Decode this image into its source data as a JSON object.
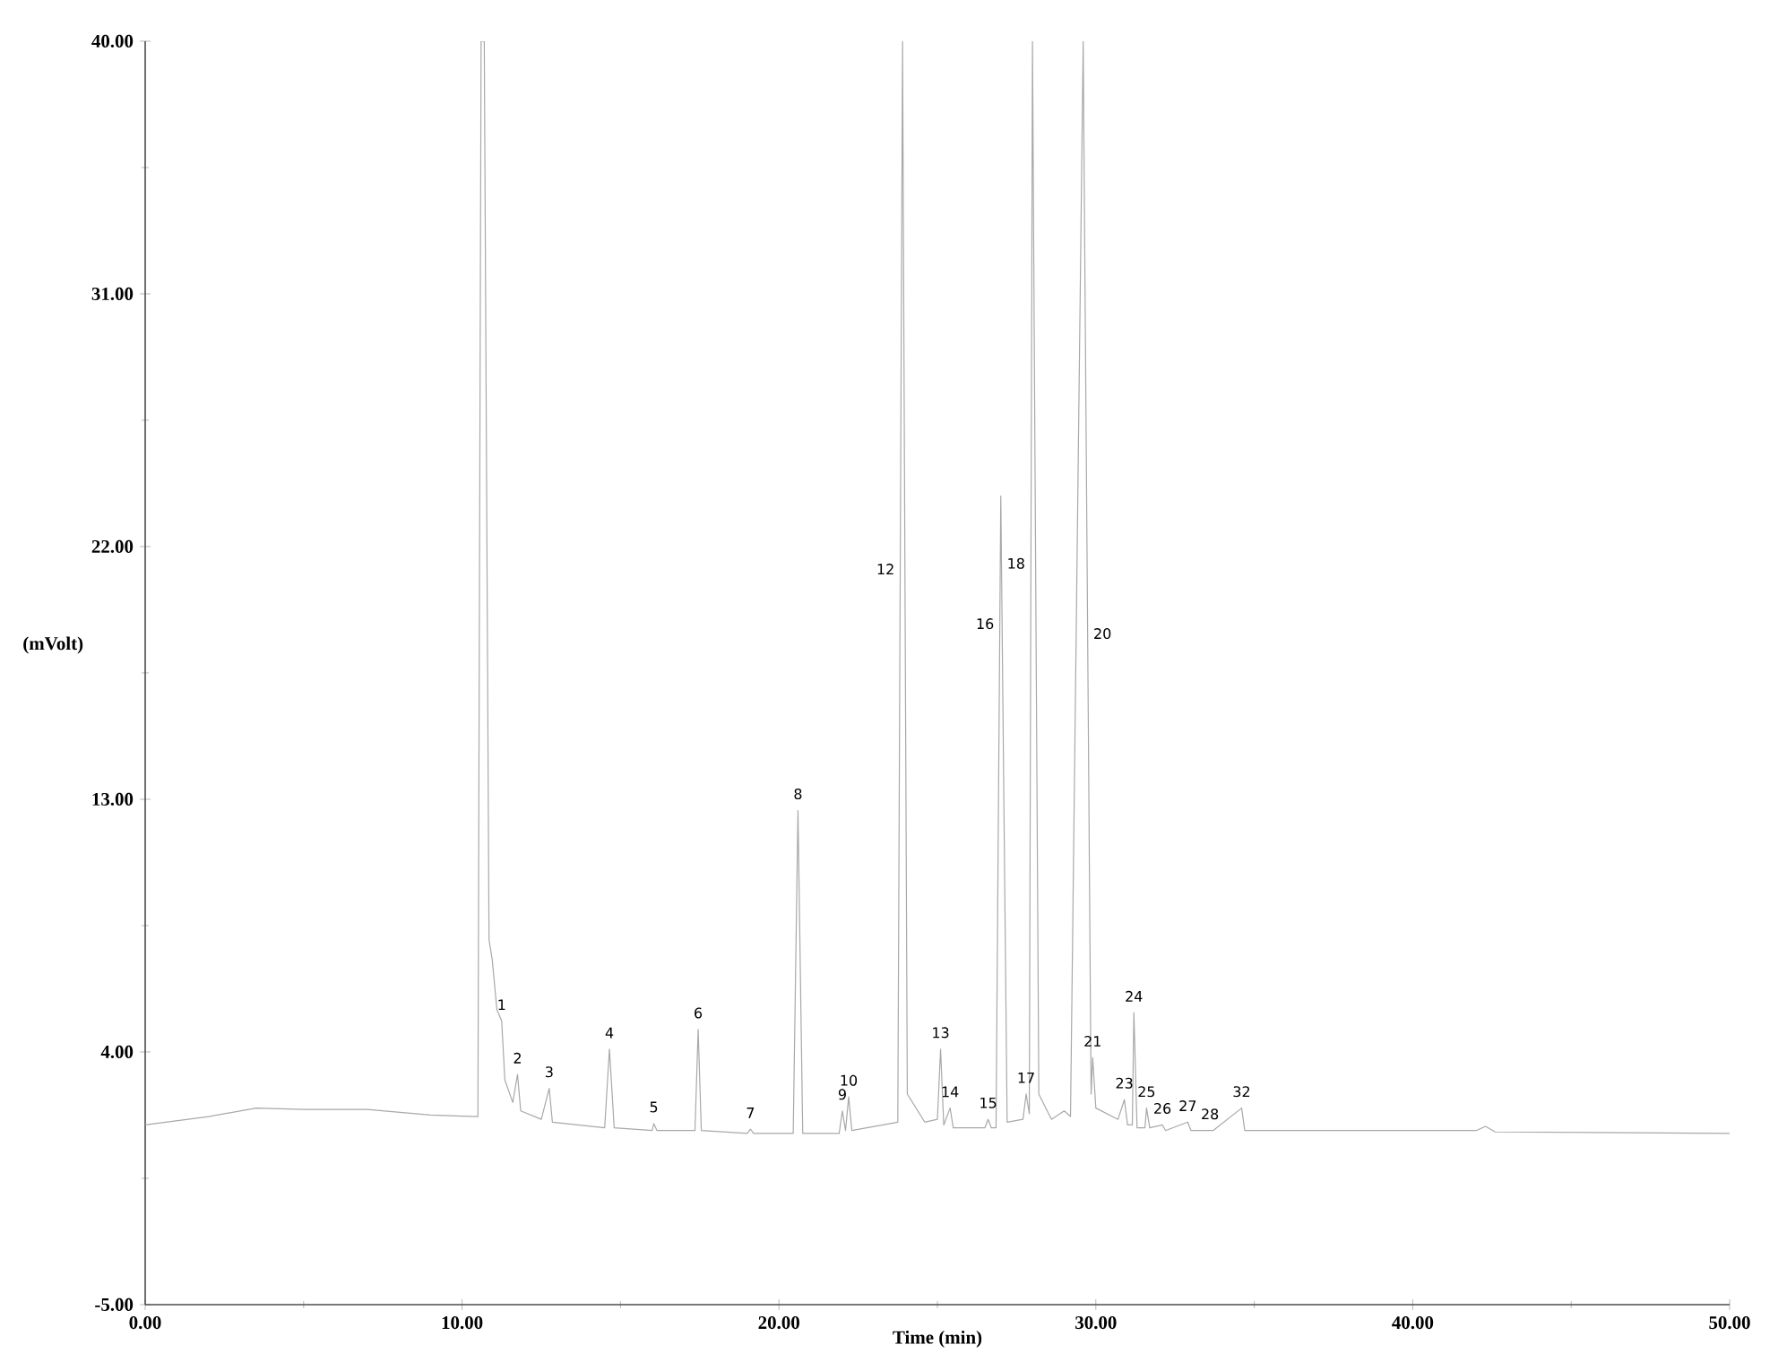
{
  "chart_data": {
    "type": "line",
    "xlabel": "Time (min)",
    "ylabel": "(mVolt)",
    "xlim": [
      0,
      50
    ],
    "ylim": [
      -5,
      40
    ],
    "xticks": [
      {
        "value": 0,
        "label": "0.00"
      },
      {
        "value": 10,
        "label": "10.00"
      },
      {
        "value": 20,
        "label": "20.00"
      },
      {
        "value": 30,
        "label": "30.00"
      },
      {
        "value": 40,
        "label": "40.00"
      },
      {
        "value": 50,
        "label": "50.00"
      }
    ],
    "yticks": [
      {
        "value": -5,
        "label": "-5.00"
      },
      {
        "value": 4,
        "label": "4.00"
      },
      {
        "value": 13,
        "label": "13.00"
      },
      {
        "value": 22,
        "label": "22.00"
      },
      {
        "value": 31,
        "label": "31.00"
      },
      {
        "value": 40,
        "label": "40.00"
      }
    ],
    "series": [
      {
        "color": "#a8a8a8",
        "x": [
          0,
          2,
          3.5,
          5,
          7,
          9,
          10.5,
          10.6,
          10.7,
          10.85,
          10.95,
          11.1,
          11.25,
          11.35,
          11.6,
          11.75,
          11.85,
          12.5,
          12.75,
          12.85,
          14.5,
          14.65,
          14.8,
          16.0,
          16.05,
          16.15,
          17.35,
          17.45,
          17.55,
          19.0,
          19.1,
          19.2,
          20.45,
          20.6,
          20.75,
          21.9,
          22.0,
          22.1,
          22.2,
          22.3,
          23.75,
          23.9,
          24.05,
          24.6,
          25.0,
          25.1,
          25.2,
          25.4,
          25.5,
          26.5,
          26.6,
          26.7,
          26.85,
          27.0,
          27.2,
          27.7,
          27.8,
          27.9,
          28.0,
          28.2,
          28.6,
          29.0,
          29.2,
          29.6,
          29.85,
          29.9,
          30.0,
          30.7,
          30.9,
          31.0,
          31.15,
          31.2,
          31.3,
          31.55,
          31.6,
          31.7,
          32.1,
          32.2,
          32.9,
          33.0,
          33.6,
          33.7,
          34.6,
          34.7,
          42,
          42.3,
          42.6,
          50
        ],
        "values": [
          1.4,
          1.7,
          2.0,
          1.95,
          1.95,
          1.75,
          1.7,
          40,
          40,
          8,
          7.3,
          5.5,
          5.1,
          3.0,
          2.2,
          3.2,
          1.9,
          1.6,
          2.7,
          1.5,
          1.3,
          4.1,
          1.3,
          1.2,
          1.45,
          1.2,
          1.2,
          4.8,
          1.2,
          1.1,
          1.25,
          1.1,
          1.1,
          12.6,
          1.1,
          1.1,
          1.9,
          1.2,
          2.4,
          1.2,
          1.5,
          40,
          2.5,
          1.5,
          1.6,
          4.1,
          1.4,
          2.0,
          1.3,
          1.3,
          1.6,
          1.3,
          1.3,
          23.8,
          1.5,
          1.6,
          2.5,
          1.8,
          40,
          2.5,
          1.6,
          1.9,
          1.7,
          40,
          2.5,
          3.8,
          2.0,
          1.6,
          2.3,
          1.4,
          1.4,
          5.4,
          1.3,
          1.3,
          2.0,
          1.3,
          1.4,
          1.2,
          1.5,
          1.2,
          1.2,
          1.2,
          2.0,
          1.2,
          1.2,
          1.35,
          1.15,
          1.1
        ]
      }
    ],
    "annotations": [
      {
        "text": "1",
        "x": 11.25,
        "y": 5.1
      },
      {
        "text": "2",
        "x": 11.75,
        "y": 3.2
      },
      {
        "text": "3",
        "x": 12.75,
        "y": 2.7
      },
      {
        "text": "4",
        "x": 14.65,
        "y": 4.1
      },
      {
        "text": "5",
        "x": 16.05,
        "y": 1.45
      },
      {
        "text": "6",
        "x": 17.45,
        "y": 4.8
      },
      {
        "text": "7",
        "x": 19.1,
        "y": 1.25
      },
      {
        "text": "8",
        "x": 20.6,
        "y": 12.6
      },
      {
        "text": "9",
        "x": 22.0,
        "y": 1.9
      },
      {
        "text": "10",
        "x": 22.2,
        "y": 2.4
      },
      {
        "text": "12",
        "x": 23.83,
        "y": 21.2
      },
      {
        "text": "13",
        "x": 25.1,
        "y": 4.1
      },
      {
        "text": "14",
        "x": 25.4,
        "y": 2.0
      },
      {
        "text": "15",
        "x": 26.6,
        "y": 1.6
      },
      {
        "text": "16",
        "x": 26.97,
        "y": 19.25
      },
      {
        "text": "17",
        "x": 27.8,
        "y": 2.5
      },
      {
        "text": "18",
        "x": 27.95,
        "y": 21.4
      },
      {
        "text": "20",
        "x": 29.74,
        "y": 18.9
      },
      {
        "text": "21",
        "x": 29.9,
        "y": 3.8
      },
      {
        "text": "23",
        "x": 30.9,
        "y": 2.3
      },
      {
        "text": "24",
        "x": 31.2,
        "y": 5.4
      },
      {
        "text": "25",
        "x": 31.6,
        "y": 2.0
      },
      {
        "text": "26",
        "x": 32.1,
        "y": 1.4
      },
      {
        "text": "27",
        "x": 32.9,
        "y": 1.5
      },
      {
        "text": "28",
        "x": 33.6,
        "y": 1.2
      },
      {
        "text": "32",
        "x": 34.6,
        "y": 2.0
      }
    ]
  }
}
